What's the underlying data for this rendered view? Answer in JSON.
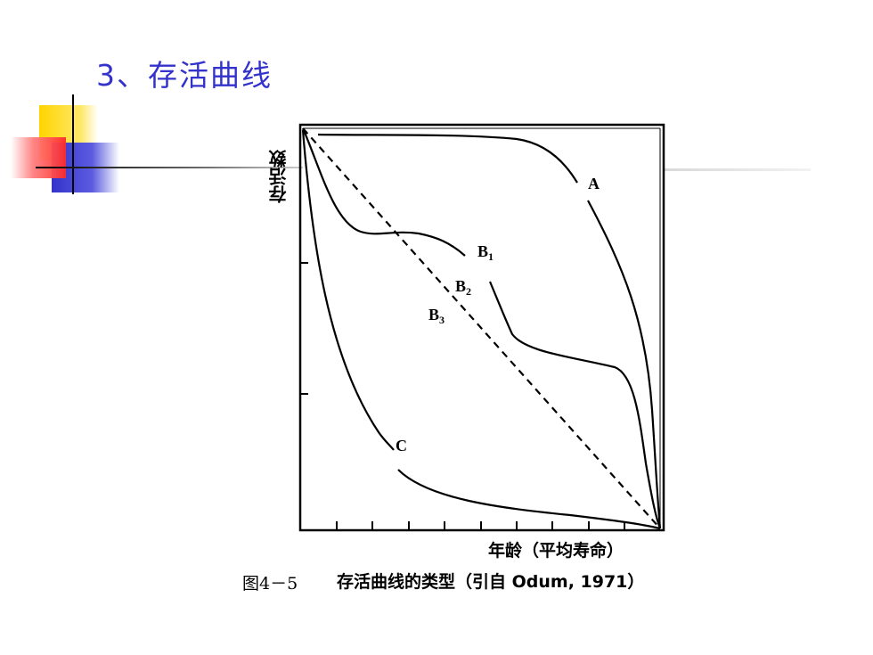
{
  "slide": {
    "title": "3、存活曲线",
    "accent_color": "#3333cc"
  },
  "diagram": {
    "y_axis_label": "存活数",
    "x_axis_label": "年龄（平均寿命）",
    "curves": [
      {
        "id": "A",
        "label": "A"
      },
      {
        "id": "B1",
        "label": "B",
        "sub": "1"
      },
      {
        "id": "B2",
        "label": "B",
        "sub": "2"
      },
      {
        "id": "B3",
        "label": "B",
        "sub": "3"
      },
      {
        "id": "C",
        "label": "C"
      }
    ]
  },
  "caption": {
    "figure_number": "图4－5",
    "text": "存活曲线的类型（引自 Odum, 1971）"
  }
}
